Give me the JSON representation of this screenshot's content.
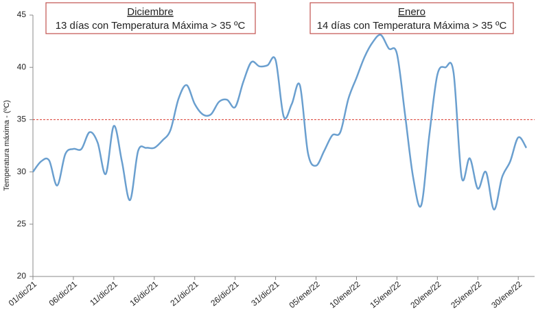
{
  "chart_data": {
    "type": "line",
    "y_label": "Temperatura máxima - (ºC)",
    "categories": [
      "01/dic/21",
      null,
      null,
      null,
      null,
      "06/dic/21",
      null,
      null,
      null,
      null,
      "11/dic/21",
      null,
      null,
      null,
      null,
      "16/dic/21",
      null,
      null,
      null,
      null,
      "21/dic/21",
      null,
      null,
      null,
      null,
      "26/dic/21",
      null,
      null,
      null,
      null,
      "31/dic/21",
      null,
      null,
      null,
      null,
      "05/ene/22",
      null,
      null,
      null,
      null,
      "10/ene/22",
      null,
      null,
      null,
      null,
      "15/ene/22",
      null,
      null,
      null,
      null,
      "20/ene/22",
      null,
      null,
      null,
      null,
      "25/ene/22",
      null,
      null,
      null,
      null,
      "30/ene/22",
      null
    ],
    "series": [
      {
        "color": "#6a9fcf",
        "values": [
          30.0,
          31.0,
          31.1,
          28.7,
          31.7,
          32.2,
          32.2,
          33.8,
          32.8,
          29.8,
          34.4,
          31.0,
          27.3,
          32.0,
          32.3,
          32.3,
          33.0,
          34.0,
          37.0,
          38.3,
          36.5,
          35.5,
          35.5,
          36.7,
          36.9,
          36.2,
          38.6,
          40.5,
          40.1,
          40.2,
          40.7,
          35.3,
          36.5,
          38.3,
          31.8,
          30.6,
          32.0,
          33.5,
          33.8,
          37.0,
          39.0,
          41.0,
          42.4,
          43.1,
          41.8,
          41.3,
          35.5,
          29.5,
          26.8,
          33.5,
          39.3,
          40.0,
          39.5,
          29.5,
          31.3,
          28.4,
          30.0,
          26.4,
          29.5,
          31.0,
          33.3,
          32.3
        ]
      }
    ],
    "threshold": {
      "value": 35,
      "color": "#d9362b"
    },
    "annotations": [
      {
        "title": "Diciembre",
        "text": "13 días con Temperatura Máxima > 35 ºC"
      },
      {
        "title": "Enero",
        "text": "14 días con Temperatura Máxima > 35 ºC"
      }
    ],
    "ylim": [
      20,
      45
    ],
    "yticks": [
      20,
      25,
      30,
      35,
      40,
      45
    ],
    "grid": false
  }
}
